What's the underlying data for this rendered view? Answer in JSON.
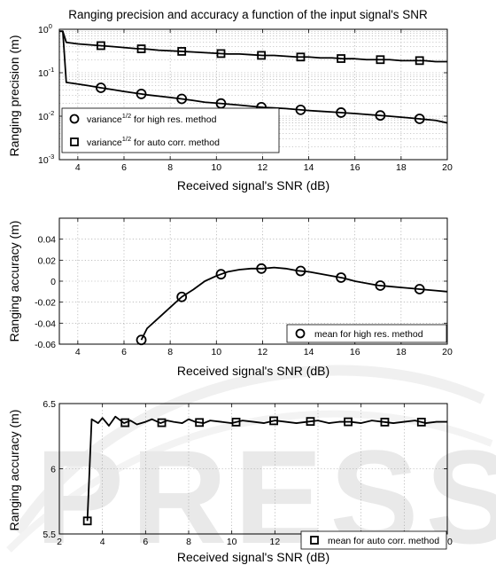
{
  "watermark": "PRESS",
  "chart_data": [
    {
      "type": "line",
      "title": "Ranging precision and accuracy a function of the input signal's SNR",
      "xlabel": "Received signal's SNR (dB)",
      "ylabel": "Ranging precision (m)",
      "xlim": [
        3.2,
        20
      ],
      "ylim": [
        0.001,
        1
      ],
      "yscale": "log",
      "grid": true,
      "legend_position": "bottom-left",
      "x_ticks": [
        "4",
        "6",
        "8",
        "10",
        "12",
        "14",
        "16",
        "18",
        "20"
      ],
      "y_ticks": [
        {
          "base": "10",
          "exp": "0"
        },
        {
          "base": "10",
          "exp": "-1"
        },
        {
          "base": "10",
          "exp": "-2"
        },
        {
          "base": "10",
          "exp": "-3"
        }
      ],
      "series": [
        {
          "name": "variance^1/2 for high res. method",
          "legend_main": "variance",
          "legend_sup": "1/2",
          "legend_rest": " for high res. method",
          "marker": "circle",
          "x": [
            3.2,
            3.35,
            3.5,
            4.0,
            4.5,
            5.0,
            5.5,
            6.0,
            6.5,
            7.0,
            7.5,
            8.0,
            8.5,
            9.0,
            9.5,
            10.0,
            10.5,
            11.0,
            11.5,
            12.0,
            12.5,
            13.0,
            13.5,
            14.0,
            14.5,
            15.0,
            15.5,
            16.0,
            16.5,
            17.0,
            17.5,
            18.0,
            18.5,
            19.0,
            19.5,
            20.0
          ],
          "y": [
            0.9,
            0.9,
            0.06,
            0.055,
            0.05,
            0.045,
            0.041,
            0.037,
            0.034,
            0.031,
            0.029,
            0.027,
            0.025,
            0.023,
            0.021,
            0.02,
            0.019,
            0.018,
            0.017,
            0.016,
            0.0155,
            0.015,
            0.0142,
            0.0135,
            0.013,
            0.0125,
            0.012,
            0.0115,
            0.011,
            0.0105,
            0.01,
            0.0095,
            0.009,
            0.0085,
            0.008,
            0.007
          ],
          "marker_x": [
            5.0,
            6.75,
            8.5,
            10.2,
            11.95,
            13.65,
            15.4,
            17.1,
            18.8
          ]
        },
        {
          "name": "variance^1/2 for auto corr. method",
          "legend_main": "variance",
          "legend_sup": "1/2",
          "legend_rest": " for auto corr. method",
          "marker": "square",
          "x": [
            3.2,
            3.35,
            3.5,
            4.0,
            4.5,
            5.0,
            5.5,
            6.0,
            6.5,
            7.0,
            7.5,
            8.0,
            8.5,
            9.0,
            9.5,
            10.0,
            10.5,
            11.0,
            11.5,
            12.0,
            12.5,
            13.0,
            13.5,
            14.0,
            14.5,
            15.0,
            15.5,
            16.0,
            16.5,
            17.0,
            17.5,
            18.0,
            18.5,
            19.0,
            19.5,
            20.0
          ],
          "y": [
            0.9,
            0.9,
            0.5,
            0.46,
            0.44,
            0.42,
            0.4,
            0.38,
            0.36,
            0.35,
            0.33,
            0.32,
            0.31,
            0.3,
            0.29,
            0.28,
            0.27,
            0.27,
            0.26,
            0.25,
            0.25,
            0.24,
            0.23,
            0.23,
            0.22,
            0.22,
            0.21,
            0.21,
            0.2,
            0.2,
            0.2,
            0.19,
            0.19,
            0.19,
            0.18,
            0.18
          ],
          "marker_x": [
            5.0,
            6.75,
            8.5,
            10.2,
            11.95,
            13.65,
            15.4,
            17.1,
            18.8
          ]
        }
      ]
    },
    {
      "type": "line",
      "title": "",
      "xlabel": "Received signal's SNR (dB)",
      "ylabel": "Ranging accuracy (m)",
      "xlim": [
        3.2,
        20
      ],
      "ylim": [
        -0.06,
        0.06
      ],
      "grid": true,
      "legend_position": "bottom-right",
      "x_ticks": [
        "4",
        "6",
        "8",
        "10",
        "12",
        "14",
        "16",
        "18",
        "20"
      ],
      "y_ticks": [
        "0.04",
        "0.02",
        "0",
        "-0.02",
        "-0.04",
        "-0.06"
      ],
      "series": [
        {
          "name": "mean for high res. method",
          "marker": "circle",
          "x": [
            6.75,
            7.0,
            7.5,
            8.0,
            8.5,
            9.0,
            9.5,
            10.0,
            10.5,
            11.0,
            11.5,
            12.0,
            12.5,
            13.0,
            13.5,
            14.0,
            14.5,
            15.0,
            15.5,
            16.0,
            16.5,
            17.0,
            17.5,
            18.0,
            18.5,
            19.0,
            19.5,
            20.0
          ],
          "y": [
            -0.056,
            -0.045,
            -0.035,
            -0.025,
            -0.015,
            -0.008,
            0.0,
            0.005,
            0.009,
            0.011,
            0.012,
            0.012,
            0.013,
            0.012,
            0.01,
            0.009,
            0.007,
            0.005,
            0.003,
            0.0,
            -0.002,
            -0.004,
            -0.005,
            -0.006,
            -0.007,
            -0.008,
            -0.009,
            -0.01
          ],
          "marker_x": [
            6.75,
            8.5,
            10.2,
            11.95,
            13.65,
            15.4,
            17.1,
            18.8
          ]
        }
      ]
    },
    {
      "type": "line",
      "title": "",
      "xlabel": "Received signal's SNR (dB)",
      "ylabel": "Ranging accuracy (m)",
      "xlim": [
        2,
        20
      ],
      "ylim": [
        5.5,
        6.5
      ],
      "grid": true,
      "legend_position": "bottom-right",
      "x_ticks": [
        "2",
        "4",
        "6",
        "8",
        "10",
        "12",
        "14",
        "16",
        "18",
        "20"
      ],
      "y_ticks": [
        "6.5",
        "6",
        "5.5"
      ],
      "series": [
        {
          "name": "mean for auto corr. method",
          "marker": "square",
          "x": [
            3.3,
            3.5,
            3.8,
            4.0,
            4.3,
            4.6,
            5.0,
            5.3,
            5.6,
            6.0,
            6.3,
            6.7,
            7.0,
            7.3,
            7.7,
            8.0,
            8.3,
            8.7,
            9.0,
            9.5,
            10.0,
            10.5,
            11.0,
            11.5,
            12.0,
            12.5,
            13.0,
            13.5,
            14.0,
            14.5,
            15.0,
            15.5,
            16.0,
            16.5,
            17.0,
            17.5,
            18.0,
            18.5,
            19.0,
            19.5,
            20.0
          ],
          "y": [
            5.6,
            6.38,
            6.35,
            6.39,
            6.33,
            6.4,
            6.35,
            6.37,
            6.34,
            6.36,
            6.38,
            6.35,
            6.37,
            6.36,
            6.35,
            6.38,
            6.36,
            6.35,
            6.37,
            6.36,
            6.35,
            6.37,
            6.36,
            6.35,
            6.37,
            6.36,
            6.35,
            6.36,
            6.37,
            6.35,
            6.36,
            6.36,
            6.35,
            6.37,
            6.36,
            6.35,
            6.36,
            6.37,
            6.35,
            6.36,
            6.36
          ],
          "marker_x": [
            3.3,
            5.05,
            6.75,
            8.5,
            10.2,
            11.95,
            13.65,
            15.4,
            17.1,
            18.8
          ]
        }
      ]
    }
  ]
}
